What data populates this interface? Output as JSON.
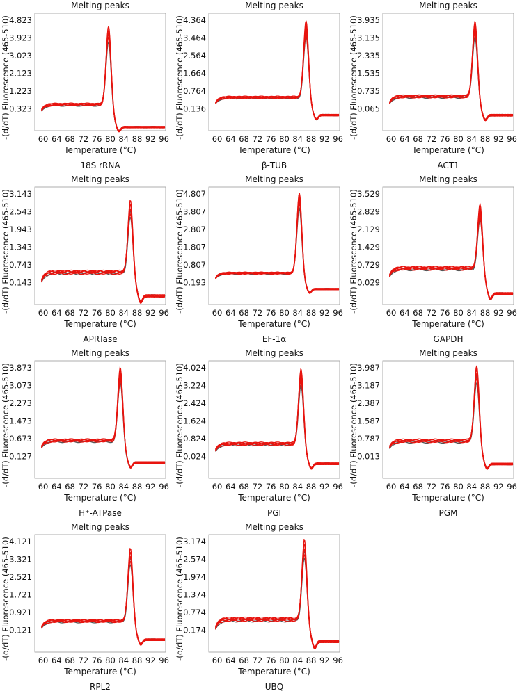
{
  "chart_data": [
    {
      "type": "line",
      "title": "Melting peaks",
      "gene": "18S rRNA",
      "xlabel": "Temperature (°C)",
      "ylabel": "-(d/dT) Fluorescence (465-510)",
      "xticks": [
        60,
        64,
        68,
        72,
        76,
        80,
        84,
        88,
        92,
        96
      ],
      "xlim": [
        57.5,
        96.5
      ],
      "yticks": [
        "0.323",
        "1.223",
        "2.123",
        "3.023",
        "3.923",
        "4.823"
      ],
      "tm": 79.5,
      "peak": 4.7,
      "plateau": 0.55,
      "tail": -0.6
    },
    {
      "type": "line",
      "title": "Melting peaks",
      "gene": "β-TUB",
      "xlabel": "Temperature (°C)",
      "ylabel": "-(d/dT) Fluorescence (465-510)",
      "xticks": [
        60,
        64,
        68,
        72,
        76,
        80,
        84,
        88,
        92,
        96
      ],
      "xlim": [
        57.5,
        96.5
      ],
      "yticks": [
        "-0.136",
        "0.764",
        "1.664",
        "2.564",
        "3.464",
        "4.364"
      ],
      "tm": 86.5,
      "peak": 4.4,
      "plateau": 0.45,
      "tail": -0.45
    },
    {
      "type": "line",
      "title": "Melting peaks",
      "gene": "ACT1",
      "xlabel": "Temperature (°C)",
      "ylabel": "-(d/dT) Fluorescence (465-510)",
      "xticks": [
        60,
        64,
        68,
        72,
        76,
        80,
        84,
        88,
        92,
        96
      ],
      "xlim": [
        57.5,
        96.5
      ],
      "yticks": [
        "-0.065",
        "0.735",
        "1.535",
        "2.335",
        "3.135",
        "3.935"
      ],
      "tm": 85,
      "peak": 4.0,
      "plateau": 0.5,
      "tail": -0.35
    },
    {
      "type": "line",
      "title": "Melting peaks",
      "gene": "APRTase",
      "xlabel": "Temperature (°C)",
      "ylabel": "-(d/dT) Fluorescence (465-510)",
      "xticks": [
        60,
        64,
        68,
        72,
        76,
        80,
        84,
        88,
        92,
        96
      ],
      "xlim": [
        57.5,
        96.5
      ],
      "yticks": [
        "0.143",
        "0.743",
        "1.343",
        "1.943",
        "2.543",
        "3.143"
      ],
      "tm": 86,
      "peak": 3.0,
      "plateau": 0.5,
      "tail": -0.3
    },
    {
      "type": "line",
      "title": "Melting peaks",
      "gene": "EF-1α",
      "xlabel": "Temperature (°C)",
      "ylabel": "-(d/dT) Fluorescence (465-510)",
      "xticks": [
        60,
        64,
        68,
        72,
        76,
        80,
        84,
        88,
        92,
        96
      ],
      "xlim": [
        57.5,
        96.5
      ],
      "yticks": [
        "-0.193",
        "0.807",
        "1.807",
        "2.807",
        "3.807",
        "4.807"
      ],
      "tm": 84.5,
      "peak": 5.0,
      "plateau": 0.35,
      "tail": -0.55
    },
    {
      "type": "line",
      "title": "Melting peaks",
      "gene": "GAPDH",
      "xlabel": "Temperature (°C)",
      "ylabel": "-(d/dT) Fluorescence (465-510)",
      "xticks": [
        60,
        64,
        68,
        72,
        76,
        80,
        84,
        88,
        92,
        96
      ],
      "xlim": [
        57.5,
        96.5
      ],
      "yticks": [
        "0.029",
        "0.729",
        "1.429",
        "2.129",
        "2.829",
        "3.529"
      ],
      "tm": 86.5,
      "peak": 3.2,
      "plateau": 0.6,
      "tail": -0.4
    },
    {
      "type": "line",
      "title": "Melting peaks",
      "gene": "H⁺-ATPase",
      "xlabel": "Temperature (°C)",
      "ylabel": "-(d/dT) Fluorescence (465-510)",
      "xticks": [
        60,
        64,
        68,
        72,
        76,
        80,
        84,
        88,
        92,
        96
      ],
      "xlim": [
        57.5,
        96.5
      ],
      "yticks": [
        "-0.127",
        "0.673",
        "1.473",
        "2.273",
        "3.073",
        "3.873"
      ],
      "tm": 83,
      "peak": 4.0,
      "plateau": 0.6,
      "tail": -0.4
    },
    {
      "type": "line",
      "title": "Melting peaks",
      "gene": "PGI",
      "xlabel": "Temperature (°C)",
      "ylabel": "-(d/dT) Fluorescence (465-510)",
      "xticks": [
        60,
        64,
        68,
        72,
        76,
        80,
        84,
        88,
        92,
        96
      ],
      "xlim": [
        57.5,
        96.5
      ],
      "yticks": [
        "0.024",
        "0.824",
        "1.624",
        "2.424",
        "3.224",
        "4.024"
      ],
      "tm": 85,
      "peak": 4.1,
      "plateau": 0.6,
      "tail": -0.3
    },
    {
      "type": "line",
      "title": "Melting peaks",
      "gene": "PGM",
      "xlabel": "Temperature (°C)",
      "ylabel": "-(d/dT) Fluorescence (465-510)",
      "xticks": [
        60,
        64,
        68,
        72,
        76,
        80,
        84,
        88,
        92,
        96
      ],
      "xlim": [
        57.5,
        96.5
      ],
      "yticks": [
        "-0.013",
        "0.787",
        "1.587",
        "2.387",
        "3.187",
        "3.987"
      ],
      "tm": 85.5,
      "peak": 4.2,
      "plateau": 0.7,
      "tail": -0.35
    },
    {
      "type": "line",
      "title": "Melting peaks",
      "gene": "RPL2",
      "xlabel": "Temperature (°C)",
      "ylabel": "-(d/dT) Fluorescence (465-510)",
      "xticks": [
        60,
        64,
        68,
        72,
        76,
        80,
        84,
        88,
        92,
        96
      ],
      "xlim": [
        57.5,
        96.5
      ],
      "yticks": [
        "0.121",
        "0.921",
        "1.721",
        "2.521",
        "3.321",
        "4.121"
      ],
      "tm": 86,
      "peak": 3.9,
      "plateau": 0.55,
      "tail": -0.3
    },
    {
      "type": "line",
      "title": "Melting peaks",
      "gene": "UBQ",
      "xlabel": "Temperature (°C)",
      "ylabel": "-(d/dT) Fluorescence (465-510)",
      "xticks": [
        60,
        64,
        68,
        72,
        76,
        80,
        84,
        88,
        92,
        96
      ],
      "xlim": [
        57.5,
        96.5
      ],
      "yticks": [
        "0.174",
        "0.774",
        "1.374",
        "1.974",
        "2.574",
        "3.174"
      ],
      "tm": 86,
      "peak": 3.3,
      "plateau": 0.55,
      "tail": -0.2
    }
  ],
  "colors": {
    "series": "#e8140f",
    "replicate_dark": "#555555",
    "frame": "#999999"
  }
}
